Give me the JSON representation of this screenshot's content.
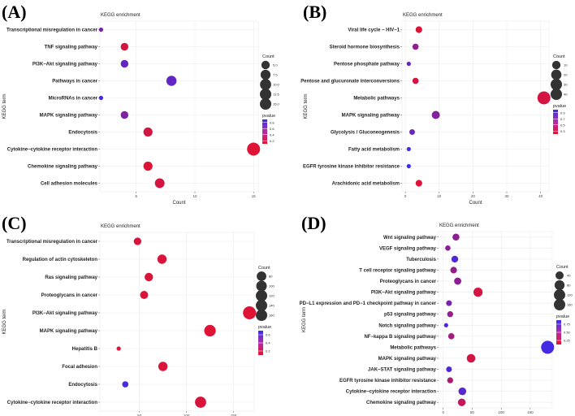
{
  "chart_data": [
    {
      "panel_label": "(A)",
      "type": "scatter",
      "title": "KEGG enrichment",
      "xlabel": "Count",
      "ylabel": "KEGG term",
      "xlim": [
        1.9,
        15.4
      ],
      "x_ticks": [
        5,
        10,
        15
      ],
      "categories": [
        "Transcriptional misregulation in cancer",
        "TNF signaling pathway",
        "PI3K−Akt signaling pathway",
        "Pathways in cancer",
        "MicroRNAs in cancer",
        "MAPK signaling pathway",
        "Endocytosis",
        "Cytokine−cytokine receptor interaction",
        "Chemokine signaling pathway",
        "Cell adhesion molecules"
      ],
      "counts": [
        2,
        4,
        4,
        8,
        2,
        4,
        6,
        15,
        6,
        7
      ],
      "pvalues": [
        0.79,
        0.7,
        0.82,
        0.82,
        0.85,
        0.79,
        0.7,
        0.69,
        0.69,
        0.7
      ],
      "size_legend": {
        "title": "Count",
        "values": [
          5.0,
          7.5,
          10.0,
          12.5,
          15.0
        ],
        "labels": [
          "5.0",
          "7.5",
          "10.0",
          "12.5",
          "15.0"
        ]
      },
      "color_legend": {
        "title": "pvalue",
        "range": [
          0.68,
          0.86
        ],
        "ticks": [
          0.8,
          0.6,
          0.4,
          0.2
        ],
        "tick_labels": [
          "0.8",
          "0.6",
          "0.4",
          "0.2"
        ]
      }
    },
    {
      "panel_label": "(B)",
      "type": "scatter",
      "title": "KEGG enrichment",
      "xlabel": "Count",
      "ylabel": "KEGG term",
      "xlim": [
        -1,
        42.5
      ],
      "x_ticks": [
        0,
        10,
        20,
        30,
        40
      ],
      "categories": [
        "Viral life cycle − HIV−1",
        "Steroid hormone biosynthesis",
        "Pentose phosphate pathway",
        "Pentose and glucuronate interconversions",
        "Metabolic pathways",
        "MAPK signaling pathway",
        "Glycolysis / Gluconeogenesis",
        "Fatty acid metabolism",
        "EGFR tyrosine kinase inhibitor resistance",
        "Arachidonic acid metabolism"
      ],
      "counts": [
        4,
        3,
        1,
        3,
        41,
        9,
        2,
        1,
        1,
        4
      ],
      "pvalues": [
        0.25,
        0.55,
        0.75,
        0.28,
        0.28,
        0.6,
        0.7,
        0.85,
        0.9,
        0.25
      ],
      "size_legend": {
        "title": "Count",
        "values": [
          10,
          20,
          30,
          40
        ],
        "labels": [
          "10",
          "20",
          "30",
          "40"
        ]
      },
      "color_legend": {
        "title": "pvalue",
        "range": [
          0.2,
          0.9
        ],
        "ticks": [
          0.9,
          0.7,
          0.5,
          0.3
        ],
        "tick_labels": [
          "0.9",
          "0.7",
          "0.5",
          "0.3"
        ]
      }
    },
    {
      "panel_label": "(C)",
      "type": "scatter",
      "title": "KEGG enrichment",
      "xlabel": "Count",
      "ylabel": "KEGG term",
      "xlim": [
        8,
        172
      ],
      "x_ticks": [
        50,
        100,
        150
      ],
      "categories": [
        "Transcriptional misregulation in cancer",
        "Regulation of actin cytoskeleton",
        "Ras signaling pathway",
        "Proteoglycans in cancer",
        "PI3K−Akt signaling pathway",
        "MAPK signaling pathway",
        "Hepatitis B",
        "Focal adhesion",
        "Endocytosis",
        "Cytokine−cytokine receptor interaction"
      ],
      "counts": [
        48,
        74,
        60,
        55,
        167,
        125,
        28,
        75,
        35,
        115
      ],
      "pvalues": [
        0.15,
        0.15,
        0.14,
        0.14,
        0.13,
        0.13,
        0.14,
        0.14,
        0.6,
        0.15
      ],
      "size_legend": {
        "title": "Count",
        "values": [
          80,
          100,
          120,
          140,
          160
        ],
        "labels": [
          "80",
          "100",
          "120",
          "140",
          "160"
        ]
      },
      "color_legend": {
        "title": "pvalue",
        "range": [
          0.1,
          0.65
        ],
        "ticks": [
          0.6,
          0.4,
          0.2
        ],
        "tick_labels": [
          "0.6",
          "0.4",
          "0.2"
        ]
      }
    },
    {
      "panel_label": "(D)",
      "type": "scatter",
      "title": "KEGG enrichment",
      "xlabel": "Count",
      "ylabel": "KEGG term",
      "xlim": [
        -8,
        188
      ],
      "x_ticks": [
        0,
        50,
        100,
        150
      ],
      "categories": [
        "Wnt signaling pathway",
        "VEGF signaling pathway",
        "Tuberculosis",
        "T cell receptor signaling pathway",
        "Proteoglycans in cancer",
        "PI3K−Akt signaling pathway",
        "PD−L1 expression and PD−1 checkpoint pathway in cancer",
        "p53 signaling pathway",
        "Notch signaling pathway",
        "NF−kappa B signaling pathway",
        "Metabolic pathways",
        "MAPK signaling pathway",
        "JAK−STAT signaling pathway",
        "EGFR tyrosine kinase inhibitor resistance",
        "Cytokine−cytokine receptor interaction",
        "Chemokine signaling pathway"
      ],
      "counts": [
        22,
        8,
        20,
        18,
        25,
        60,
        10,
        12,
        5,
        14,
        180,
        48,
        10,
        12,
        33,
        32
      ],
      "pvalues": [
        0.55,
        0.55,
        0.85,
        0.5,
        0.55,
        0.2,
        0.65,
        0.5,
        0.85,
        0.45,
        0.9,
        0.2,
        0.85,
        0.4,
        0.8,
        0.3
      ],
      "size_legend": {
        "title": "Count",
        "values": [
          40,
          80,
          120,
          160
        ],
        "labels": [
          "40",
          "80",
          "120",
          "160"
        ]
      },
      "color_legend": {
        "title": "pvalue",
        "range": [
          0.1,
          0.95
        ],
        "ticks": [
          0.75,
          0.5,
          0.25
        ],
        "tick_labels": [
          "0.75",
          "0.50",
          "0.25"
        ]
      }
    }
  ],
  "colors": {
    "high_pvalue": "#3b2cf0",
    "low_pvalue": "#e8122b",
    "panel_bg": "#ffffff",
    "grid": "#ebebeb"
  }
}
